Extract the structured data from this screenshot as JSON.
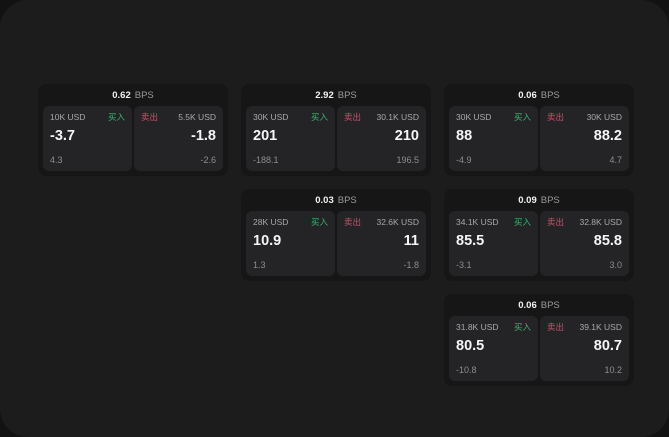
{
  "labels": {
    "bps_unit": "BPS",
    "buy": "买入",
    "sell": "卖出"
  },
  "colors": {
    "buy": "#3cb46e",
    "sell": "#c05566",
    "surface": "#1c1c1d",
    "card": "#161617",
    "cell": "#242426"
  },
  "cards": [
    {
      "bps": "0.62",
      "col": 1,
      "row": 1,
      "buy": {
        "amount": "10K USD",
        "value": "-3.7",
        "sub": "4.3"
      },
      "sell": {
        "amount": "5.5K USD",
        "value": "-1.8",
        "sub": "-2.6"
      }
    },
    {
      "bps": "2.92",
      "col": 2,
      "row": 1,
      "buy": {
        "amount": "30K USD",
        "value": "201",
        "sub": "-188.1"
      },
      "sell": {
        "amount": "30.1K USD",
        "value": "210",
        "sub": "196.5"
      }
    },
    {
      "bps": "0.06",
      "col": 3,
      "row": 1,
      "buy": {
        "amount": "30K USD",
        "value": "88",
        "sub": "-4.9"
      },
      "sell": {
        "amount": "30K USD",
        "value": "88.2",
        "sub": "4.7"
      }
    },
    {
      "bps": "0.03",
      "col": 2,
      "row": 2,
      "buy": {
        "amount": "28K USD",
        "value": "10.9",
        "sub": "1.3"
      },
      "sell": {
        "amount": "32.6K USD",
        "value": "11",
        "sub": "-1.8"
      }
    },
    {
      "bps": "0.09",
      "col": 3,
      "row": 2,
      "buy": {
        "amount": "34.1K USD",
        "value": "85.5",
        "sub": "-3.1"
      },
      "sell": {
        "amount": "32.8K USD",
        "value": "85.8",
        "sub": "3.0"
      }
    },
    {
      "bps": "0.06",
      "col": 3,
      "row": 3,
      "buy": {
        "amount": "31.8K USD",
        "value": "80.5",
        "sub": "-10.8"
      },
      "sell": {
        "amount": "39.1K USD",
        "value": "80.7",
        "sub": "10.2"
      }
    }
  ]
}
